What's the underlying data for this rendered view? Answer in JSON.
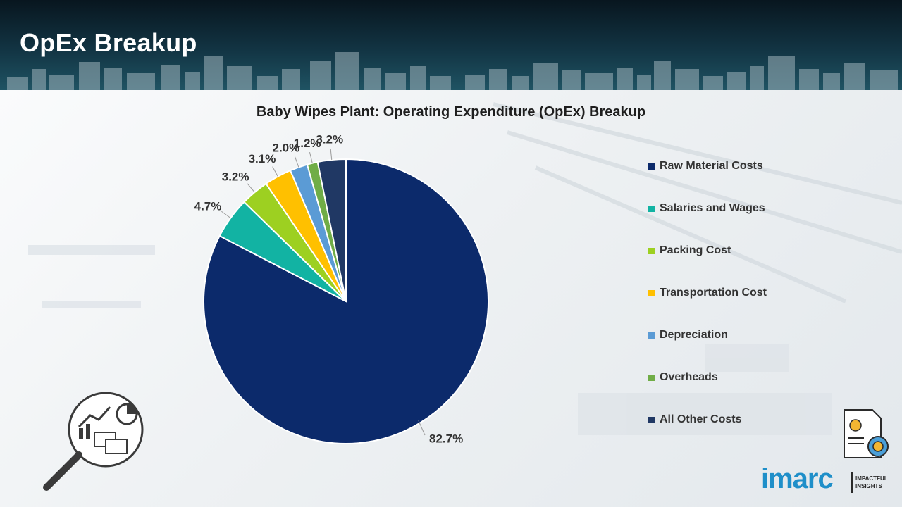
{
  "header": {
    "title": "OpEx Breakup"
  },
  "brand": {
    "name": "imarc",
    "tagline": "IMPACTFUL INSIGHTS"
  },
  "chart_data": {
    "type": "pie",
    "title": "Baby Wipes Plant: Operating Expenditure (OpEx) Breakup",
    "unit": "%",
    "start_angle_deg": 0,
    "direction": "clockwise",
    "legend_position": "right",
    "slices": [
      {
        "label": "Raw Material Costs",
        "value": 82.7,
        "color": "#0c2a6b",
        "data_label": "82.7%"
      },
      {
        "label": "Salaries and Wages",
        "value": 4.7,
        "color": "#12b3a3",
        "data_label": "4.7%"
      },
      {
        "label": "Packing Cost",
        "value": 3.2,
        "color": "#9dd021",
        "data_label": "3.2%"
      },
      {
        "label": "Transportation Cost",
        "value": 3.1,
        "color": "#ffc000",
        "data_label": "3.1%"
      },
      {
        "label": "Depreciation",
        "value": 2.0,
        "color": "#5b9bd5",
        "data_label": "2.0%"
      },
      {
        "label": "Overheads",
        "value": 1.2,
        "color": "#70ad47",
        "data_label": "1.2%"
      },
      {
        "label": "All Other Costs",
        "value": 3.2,
        "color": "#203864",
        "data_label": "3.2%"
      }
    ]
  }
}
